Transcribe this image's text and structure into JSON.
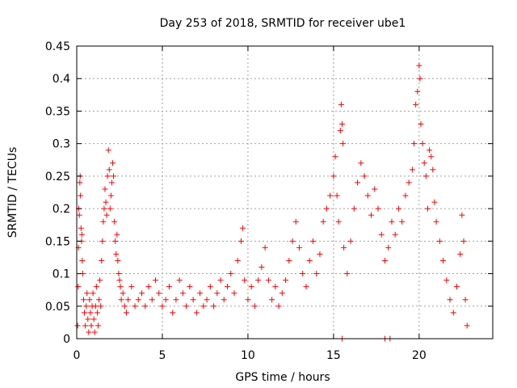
{
  "chart_data": {
    "type": "scatter",
    "title": "Day 253 of 2018, SRMTID for receiver ube1",
    "xlabel": "GPS time / hours",
    "ylabel": "SRMTID / TECUs",
    "xlim": [
      0,
      24.3
    ],
    "ylim": [
      0,
      0.45
    ],
    "xticks": [
      0,
      5,
      10,
      15,
      20
    ],
    "xtick_labels": [
      "0",
      "5",
      "10",
      "15",
      "20"
    ],
    "yticks": [
      0,
      0.05,
      0.1,
      0.15,
      0.2,
      0.25,
      0.3,
      0.35,
      0.4,
      0.45
    ],
    "ytick_labels": [
      "0",
      "0.05",
      "0.1",
      "0.15",
      "0.2",
      "0.25",
      "0.3",
      "0.35",
      "0.4",
      "0.45"
    ],
    "grid": true,
    "marker": "+",
    "color": "#ff0000",
    "series": [
      {
        "name": "SRMTID",
        "points": [
          [
            0.05,
            0.02
          ],
          [
            0.08,
            0.08
          ],
          [
            0.1,
            0.14
          ],
          [
            0.12,
            0.2
          ],
          [
            0.15,
            0.19
          ],
          [
            0.18,
            0.24
          ],
          [
            0.2,
            0.25
          ],
          [
            0.22,
            0.22
          ],
          [
            0.25,
            0.17
          ],
          [
            0.28,
            0.15
          ],
          [
            0.3,
            0.16
          ],
          [
            0.32,
            0.12
          ],
          [
            0.35,
            0.1
          ],
          [
            0.4,
            0.06
          ],
          [
            0.45,
            0.04
          ],
          [
            0.5,
            0.02
          ],
          [
            0.55,
            0.05
          ],
          [
            0.6,
            0.07
          ],
          [
            0.65,
            0.03
          ],
          [
            0.7,
            0.01
          ],
          [
            0.75,
            0.06
          ],
          [
            0.8,
            0.04
          ],
          [
            0.85,
            0.02
          ],
          [
            0.9,
            0.05
          ],
          [
            0.95,
            0.07
          ],
          [
            1.0,
            0.03
          ],
          [
            1.05,
            0.01
          ],
          [
            1.1,
            0.05
          ],
          [
            1.15,
            0.08
          ],
          [
            1.2,
            0.04
          ],
          [
            1.25,
            0.02
          ],
          [
            1.3,
            0.06
          ],
          [
            1.35,
            0.09
          ],
          [
            1.4,
            0.05
          ],
          [
            1.45,
            0.12
          ],
          [
            1.5,
            0.15
          ],
          [
            1.55,
            0.18
          ],
          [
            1.6,
            0.2
          ],
          [
            1.65,
            0.23
          ],
          [
            1.7,
            0.21
          ],
          [
            1.75,
            0.19
          ],
          [
            1.8,
            0.25
          ],
          [
            1.85,
            0.29
          ],
          [
            1.9,
            0.26
          ],
          [
            1.95,
            0.2
          ],
          [
            2.0,
            0.22
          ],
          [
            2.05,
            0.24
          ],
          [
            2.1,
            0.27
          ],
          [
            2.15,
            0.25
          ],
          [
            2.2,
            0.18
          ],
          [
            2.25,
            0.15
          ],
          [
            2.3,
            0.13
          ],
          [
            2.35,
            0.16
          ],
          [
            2.4,
            0.12
          ],
          [
            2.45,
            0.1
          ],
          [
            2.5,
            0.09
          ],
          [
            2.55,
            0.08
          ],
          [
            2.6,
            0.06
          ],
          [
            2.7,
            0.07
          ],
          [
            2.8,
            0.05
          ],
          [
            2.9,
            0.04
          ],
          [
            3.0,
            0.06
          ],
          [
            3.2,
            0.08
          ],
          [
            3.4,
            0.05
          ],
          [
            3.6,
            0.06
          ],
          [
            3.8,
            0.07
          ],
          [
            4.0,
            0.05
          ],
          [
            4.2,
            0.08
          ],
          [
            4.4,
            0.06
          ],
          [
            4.6,
            0.09
          ],
          [
            4.8,
            0.07
          ],
          [
            5.0,
            0.05
          ],
          [
            5.2,
            0.06
          ],
          [
            5.4,
            0.08
          ],
          [
            5.6,
            0.04
          ],
          [
            5.8,
            0.06
          ],
          [
            6.0,
            0.09
          ],
          [
            6.2,
            0.07
          ],
          [
            6.4,
            0.05
          ],
          [
            6.6,
            0.08
          ],
          [
            6.8,
            0.06
          ],
          [
            7.0,
            0.04
          ],
          [
            7.2,
            0.07
          ],
          [
            7.4,
            0.05
          ],
          [
            7.6,
            0.06
          ],
          [
            7.8,
            0.08
          ],
          [
            8.0,
            0.05
          ],
          [
            8.2,
            0.07
          ],
          [
            8.4,
            0.09
          ],
          [
            8.6,
            0.06
          ],
          [
            8.8,
            0.08
          ],
          [
            9.0,
            0.1
          ],
          [
            9.2,
            0.07
          ],
          [
            9.4,
            0.12
          ],
          [
            9.6,
            0.15
          ],
          [
            9.7,
            0.17
          ],
          [
            9.8,
            0.09
          ],
          [
            10.0,
            0.06
          ],
          [
            10.2,
            0.08
          ],
          [
            10.4,
            0.05
          ],
          [
            10.6,
            0.09
          ],
          [
            10.8,
            0.11
          ],
          [
            11.0,
            0.14
          ],
          [
            11.2,
            0.09
          ],
          [
            11.4,
            0.06
          ],
          [
            11.6,
            0.08
          ],
          [
            11.8,
            0.05
          ],
          [
            12.0,
            0.07
          ],
          [
            12.2,
            0.09
          ],
          [
            12.4,
            0.12
          ],
          [
            12.6,
            0.15
          ],
          [
            12.8,
            0.18
          ],
          [
            13.0,
            0.14
          ],
          [
            13.2,
            0.1
          ],
          [
            13.4,
            0.08
          ],
          [
            13.6,
            0.12
          ],
          [
            13.8,
            0.15
          ],
          [
            14.0,
            0.1
          ],
          [
            14.2,
            0.13
          ],
          [
            14.4,
            0.18
          ],
          [
            14.6,
            0.2
          ],
          [
            14.8,
            0.22
          ],
          [
            15.0,
            0.25
          ],
          [
            15.1,
            0.28
          ],
          [
            15.2,
            0.22
          ],
          [
            15.3,
            0.18
          ],
          [
            15.4,
            0.32
          ],
          [
            15.45,
            0.36
          ],
          [
            15.5,
            0.33
          ],
          [
            15.55,
            0.3
          ],
          [
            15.6,
            0.14
          ],
          [
            15.8,
            0.1
          ],
          [
            16.0,
            0.15
          ],
          [
            16.2,
            0.2
          ],
          [
            16.4,
            0.24
          ],
          [
            16.6,
            0.27
          ],
          [
            16.8,
            0.25
          ],
          [
            17.0,
            0.22
          ],
          [
            17.2,
            0.19
          ],
          [
            17.4,
            0.23
          ],
          [
            17.6,
            0.2
          ],
          [
            17.8,
            0.16
          ],
          [
            18.0,
            0.12
          ],
          [
            18.2,
            0.14
          ],
          [
            18.4,
            0.18
          ],
          [
            18.6,
            0.16
          ],
          [
            18.8,
            0.2
          ],
          [
            19.0,
            0.18
          ],
          [
            19.2,
            0.22
          ],
          [
            19.4,
            0.24
          ],
          [
            19.6,
            0.26
          ],
          [
            19.7,
            0.3
          ],
          [
            19.8,
            0.36
          ],
          [
            19.9,
            0.38
          ],
          [
            20.0,
            0.42
          ],
          [
            20.05,
            0.4
          ],
          [
            20.1,
            0.33
          ],
          [
            20.2,
            0.3
          ],
          [
            20.3,
            0.27
          ],
          [
            20.4,
            0.25
          ],
          [
            20.5,
            0.2
          ],
          [
            20.6,
            0.29
          ],
          [
            20.7,
            0.28
          ],
          [
            20.8,
            0.26
          ],
          [
            20.9,
            0.21
          ],
          [
            21.0,
            0.18
          ],
          [
            21.2,
            0.15
          ],
          [
            21.4,
            0.12
          ],
          [
            21.6,
            0.09
          ],
          [
            21.8,
            0.06
          ],
          [
            22.0,
            0.04
          ],
          [
            22.2,
            0.08
          ],
          [
            22.4,
            0.13
          ],
          [
            22.5,
            0.19
          ],
          [
            22.6,
            0.15
          ],
          [
            22.7,
            0.06
          ],
          [
            22.8,
            0.02
          ],
          [
            18.0,
            0.0
          ],
          [
            18.3,
            0.0
          ],
          [
            15.5,
            0.0
          ]
        ]
      }
    ]
  }
}
